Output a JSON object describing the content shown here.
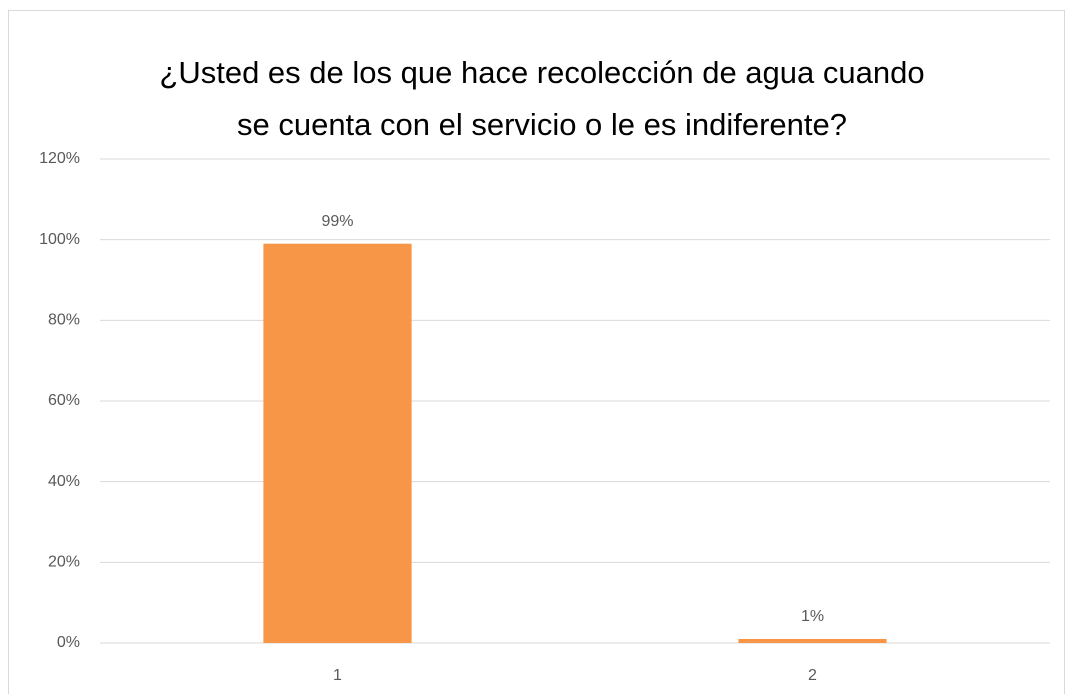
{
  "chart_data": {
    "type": "bar",
    "title": [
      "¿Usted es de los que hace recolección de agua cuando",
      "se cuenta con el servicio o le es indiferente?"
    ],
    "categories": [
      "1",
      "2"
    ],
    "values": [
      99,
      1
    ],
    "value_labels": [
      "99%",
      "1%"
    ],
    "color": "#f79646",
    "ylim": [
      0,
      120
    ],
    "yticks": [
      {
        "value": 0,
        "label": "0%"
      },
      {
        "value": 20,
        "label": "20%"
      },
      {
        "value": 40,
        "label": "40%"
      },
      {
        "value": 60,
        "label": "60%"
      },
      {
        "value": 80,
        "label": "80%"
      },
      {
        "value": 100,
        "label": "100%"
      },
      {
        "value": 120,
        "label": "120%"
      }
    ],
    "grid": true
  }
}
